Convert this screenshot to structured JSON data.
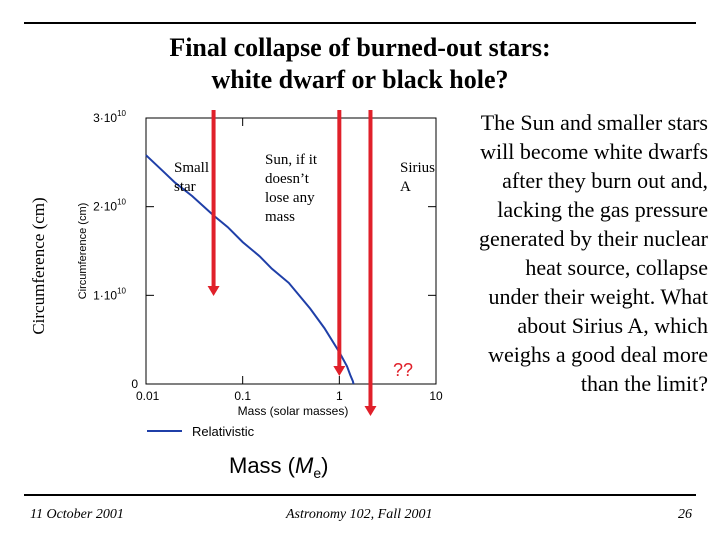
{
  "title_line1": "Final collapse of burned-out stars:",
  "title_line2": "white dwarf or black hole?",
  "side_text": "The Sun and smaller stars will become white dwarfs after they burn out and, lacking the gas pressure generated by their nuclear heat source, collapse under their weight. What about Sirius A, which weighs a good deal more than the limit?",
  "footer": {
    "date": "11 October 2001",
    "course": "Astronomy 102, Fall 2001",
    "page": "26"
  },
  "chart_data": {
    "type": "line",
    "x_scale": "log",
    "xlim": [
      0.01,
      10
    ],
    "ylim": [
      0,
      30000000000
    ],
    "xlabel": "Mass (solar masses)",
    "ylabel": "Circumference (cm)",
    "outer_ylabel": "Circumference (cm)",
    "outer_xlabel_main": "Mass (",
    "outer_xlabel_var": "M",
    "outer_xlabel_sub": "e",
    "outer_xlabel_close": ")",
    "x_ticks": [
      {
        "value": 0.01,
        "label": "0.01"
      },
      {
        "value": 0.1,
        "label": "0.1"
      },
      {
        "value": 1,
        "label": "1"
      },
      {
        "value": 10,
        "label": "10"
      }
    ],
    "y_ticks": [
      {
        "value": 0,
        "label": "0"
      },
      {
        "value": 10000000000,
        "label": "1·10",
        "exp": "10"
      },
      {
        "value": 20000000000,
        "label": "2·10",
        "exp": "10"
      },
      {
        "value": 30000000000,
        "label": "3·10",
        "exp": "10"
      }
    ],
    "legend": {
      "label": "Relativistic",
      "placement": "bottom-left",
      "color": "#1f3fa8"
    },
    "series": [
      {
        "name": "Relativistic",
        "color": "#1f3fa8",
        "points": [
          [
            0.01,
            25800000000
          ],
          [
            0.015,
            24000000000
          ],
          [
            0.02,
            22700000000
          ],
          [
            0.03,
            21200000000
          ],
          [
            0.05,
            19000000000
          ],
          [
            0.07,
            17700000000
          ],
          [
            0.1,
            16000000000
          ],
          [
            0.15,
            14400000000
          ],
          [
            0.2,
            13000000000
          ],
          [
            0.3,
            11400000000
          ],
          [
            0.5,
            8500000000
          ],
          [
            0.7,
            6300000000
          ],
          [
            1.0,
            3600000000
          ],
          [
            1.2,
            2000000000
          ],
          [
            1.3,
            1000000000
          ],
          [
            1.38,
            300000000
          ],
          [
            1.4,
            0
          ]
        ]
      }
    ],
    "markers": [
      {
        "mass": 0.05,
        "label": "Small\nstar",
        "color": "#e0202a"
      },
      {
        "mass": 1,
        "label": "Sun, if it\ndoesn’t\nlose any\nmass",
        "color": "#e0202a"
      },
      {
        "mass": 2.1,
        "label": "Sirius\nA",
        "color": "#e0202a",
        "note": "??"
      }
    ]
  }
}
